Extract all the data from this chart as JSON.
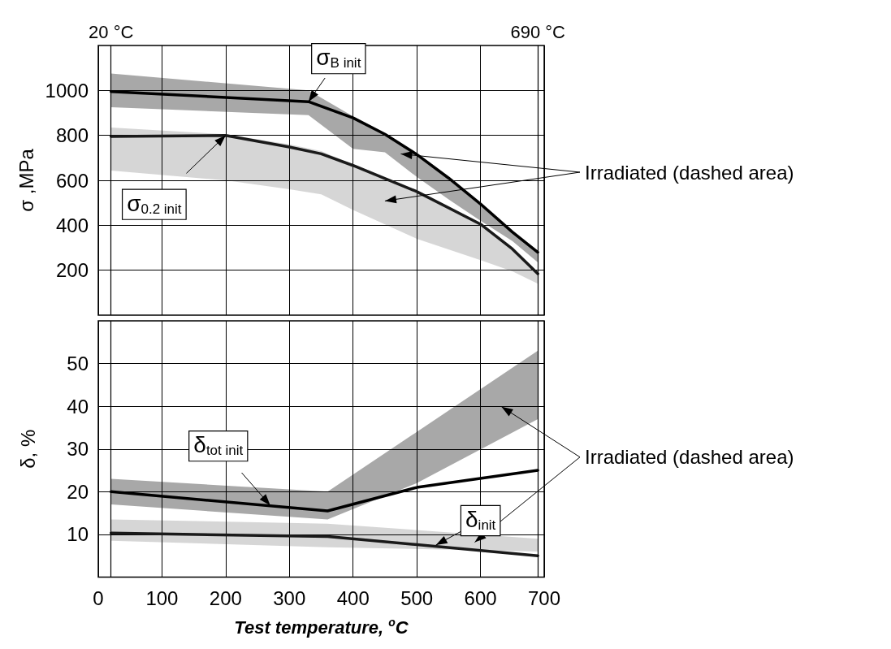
{
  "chart_data": [
    {
      "type": "line",
      "ylabel": "σ ,MPa",
      "xlim": [
        0,
        700
      ],
      "xticks": [
        0,
        100,
        200,
        300,
        400,
        500,
        600,
        700
      ],
      "ylim": [
        0,
        1200
      ],
      "yticks": [
        200,
        400,
        600,
        800,
        1000
      ],
      "grid": true,
      "tick_labels": "y",
      "marker": "none",
      "line_style": "solid",
      "series": [
        {
          "color": "#000000",
          "x": [
            20,
            330,
            400,
            450,
            500,
            550,
            600,
            650,
            690
          ],
          "values": [
            995,
            950,
            878,
            805,
            715,
            610,
            495,
            370,
            280
          ],
          "lower": [
            925,
            890,
            740,
            725,
            615,
            515,
            420,
            330,
            235
          ],
          "upper": [
            1075,
            1000,
            885,
            810,
            720,
            615,
            500,
            375,
            280
          ]
        },
        {
          "color": "#1a1a1a",
          "x": [
            20,
            200,
            300,
            350,
            400,
            500,
            600,
            650,
            690
          ],
          "values": [
            795,
            800,
            748,
            718,
            666,
            550,
            405,
            295,
            184
          ],
          "lower": [
            643,
            600,
            560,
            538,
            468,
            340,
            245,
            195,
            140
          ],
          "upper": [
            835,
            805,
            760,
            730,
            670,
            555,
            410,
            300,
            190
          ]
        }
      ],
      "ref_lines": [
        {
          "axis": "x",
          "value": 20,
          "label": "20 °C"
        },
        {
          "axis": "x",
          "value": 690,
          "label": "690 °C"
        }
      ],
      "annotations": [
        {
          "text": "σ$_{B init}$",
          "x": 330,
          "y": 950
        },
        {
          "text": "σ$_{0.2 init}$",
          "x": 200,
          "y": 800
        },
        "Irradiated (dashed area)"
      ]
    },
    {
      "type": "line",
      "xlabel": "Test temperature, $^{o}$C",
      "ylabel": "δ, %",
      "xlim": [
        0,
        700
      ],
      "xticks": [
        0,
        100,
        200,
        300,
        400,
        500,
        600,
        700
      ],
      "ylim": [
        0,
        60
      ],
      "yticks": [
        10,
        20,
        30,
        40,
        50
      ],
      "grid": true,
      "marker": "none",
      "line_style": "solid",
      "series": [
        {
          "color": "#000000",
          "x": [
            20,
            360,
            500,
            690
          ],
          "values": [
            20,
            15.5,
            21,
            25
          ],
          "lower": [
            17,
            13.5,
            22,
            37
          ],
          "upper": [
            23,
            20,
            34,
            53
          ]
        },
        {
          "color": "#1a1a1a",
          "x": [
            20,
            360,
            690
          ],
          "values": [
            10.3,
            9.5,
            5
          ],
          "lower": [
            8.5,
            7,
            6
          ],
          "upper": [
            13.5,
            12.5,
            9
          ]
        }
      ],
      "ref_lines": [
        {
          "axis": "x",
          "value": 20
        },
        {
          "axis": "x",
          "value": 690
        }
      ],
      "annotations": [
        {
          "text": "δ$_{tot init}$",
          "x": 270,
          "y": 16.8
        },
        {
          "text": "δ$_{init}$",
          "x": 530,
          "y": 7.5
        },
        "Irradiated (dashed area)"
      ]
    }
  ]
}
